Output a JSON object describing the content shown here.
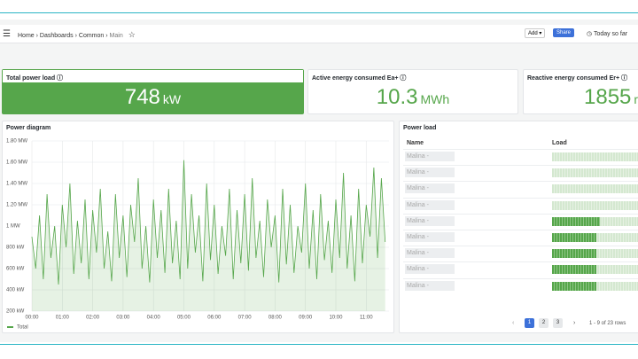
{
  "nav": {
    "breadcrumb": [
      "Home",
      "Dashboards",
      "Common",
      "Main"
    ],
    "add": "Add",
    "share": "Share",
    "time_range": "Today so far"
  },
  "stats": [
    {
      "title": "Total power load",
      "value": "748",
      "unit": "kW"
    },
    {
      "title": "Active energy consumed Ea+",
      "value": "10.3",
      "unit": "MWh"
    },
    {
      "title": "Reactive energy consumed Er+",
      "value": "1855",
      "unit": "r"
    }
  ],
  "chart_data": {
    "type": "line",
    "title": "Power diagram",
    "x": [
      0,
      0.125,
      0.25,
      0.375,
      0.5,
      0.625,
      0.75,
      0.875,
      1,
      1.125,
      1.25,
      1.375,
      1.5,
      1.625,
      1.75,
      1.875,
      2,
      2.125,
      2.25,
      2.375,
      2.5,
      2.625,
      2.75,
      2.875,
      3,
      3.125,
      3.25,
      3.375,
      3.5,
      3.625,
      3.75,
      3.875,
      4,
      4.125,
      4.25,
      4.375,
      4.5,
      4.625,
      4.75,
      4.875,
      5,
      5.125,
      5.25,
      5.375,
      5.5,
      5.625,
      5.75,
      5.875,
      6,
      6.125,
      6.25,
      6.375,
      6.5,
      6.625,
      6.75,
      6.875,
      7,
      7.125,
      7.25,
      7.375,
      7.5,
      7.625,
      7.75,
      7.875,
      8,
      8.125,
      8.25,
      8.375,
      8.5,
      8.625,
      8.75,
      8.875,
      9,
      9.125,
      9.25,
      9.375,
      9.5,
      9.625,
      9.75,
      9.875,
      10,
      10.125,
      10.25,
      10.375,
      10.5,
      10.625,
      10.75,
      10.875,
      11,
      11.125,
      11.25,
      11.375,
      11.5,
      11.625
    ],
    "xlim": [
      0,
      11.75
    ],
    "xticks": [
      {
        "value": 0,
        "label": "00:00"
      },
      {
        "value": 1,
        "label": "01:00"
      },
      {
        "value": 2,
        "label": "02:00"
      },
      {
        "value": 3,
        "label": "03:00"
      },
      {
        "value": 4,
        "label": "04:00"
      },
      {
        "value": 5,
        "label": "05:00"
      },
      {
        "value": 6,
        "label": "06:00"
      },
      {
        "value": 7,
        "label": "07:00"
      },
      {
        "value": 8,
        "label": "08:00"
      },
      {
        "value": 9,
        "label": "09:00"
      },
      {
        "value": 10,
        "label": "10:00"
      },
      {
        "value": 11,
        "label": "11:00"
      }
    ],
    "ylim": [
      200,
      1800
    ],
    "yticks": [
      {
        "value": 200,
        "label": "200 kW"
      },
      {
        "value": 400,
        "label": "400 kW"
      },
      {
        "value": 600,
        "label": "600 kW"
      },
      {
        "value": 800,
        "label": "800 kW"
      },
      {
        "value": 1000,
        "label": "1 MW"
      },
      {
        "value": 1200,
        "label": "1.20 MW"
      },
      {
        "value": 1400,
        "label": "1.40 MW"
      },
      {
        "value": 1600,
        "label": "1.60 MW"
      },
      {
        "value": 1800,
        "label": "1.80 MW"
      }
    ],
    "grid": true,
    "series": [
      {
        "name": "Total",
        "color": "#56a64b",
        "values": [
          900,
          600,
          1100,
          500,
          1300,
          700,
          1000,
          450,
          1200,
          800,
          1400,
          550,
          1050,
          650,
          1250,
          500,
          1150,
          750,
          1350,
          600,
          950,
          480,
          1300,
          700,
          1100,
          520,
          1200,
          850,
          1450,
          600,
          1000,
          470,
          1250,
          700,
          1150,
          560,
          1350,
          650,
          1050,
          500,
          1620,
          600,
          1300,
          750,
          1100,
          480,
          1400,
          680,
          1200,
          550,
          1000,
          720,
          1350,
          500,
          1150,
          650,
          1300,
          580,
          1450,
          700,
          1050,
          520,
          1250,
          800,
          1100,
          470,
          1350,
          640,
          1200,
          560,
          1000,
          750,
          1400,
          600,
          1150,
          500,
          1300,
          680,
          1050,
          560,
          1250,
          700,
          1500,
          600,
          1100,
          480,
          1350,
          650,
          1200,
          900,
          1550,
          700,
          1450,
          850
        ]
      }
    ]
  },
  "table": {
    "title": "Power load",
    "columns": [
      "Name",
      "Load"
    ],
    "load_range": [
      0,
      100
    ],
    "rows": [
      {
        "name": "Malina -",
        "load": 0
      },
      {
        "name": "Malina -",
        "load": 0
      },
      {
        "name": "Malina -",
        "load": 0
      },
      {
        "name": "Malina -",
        "load": 0
      },
      {
        "name": "Malina -",
        "load": 52
      },
      {
        "name": "Malina -",
        "load": 48
      },
      {
        "name": "Malina -",
        "load": 48
      },
      {
        "name": "Malina -",
        "load": 48
      },
      {
        "name": "Malina -",
        "load": 48
      }
    ],
    "pages": [
      "1",
      "2",
      "3"
    ],
    "summary": "1 - 9 of 23 rows"
  }
}
